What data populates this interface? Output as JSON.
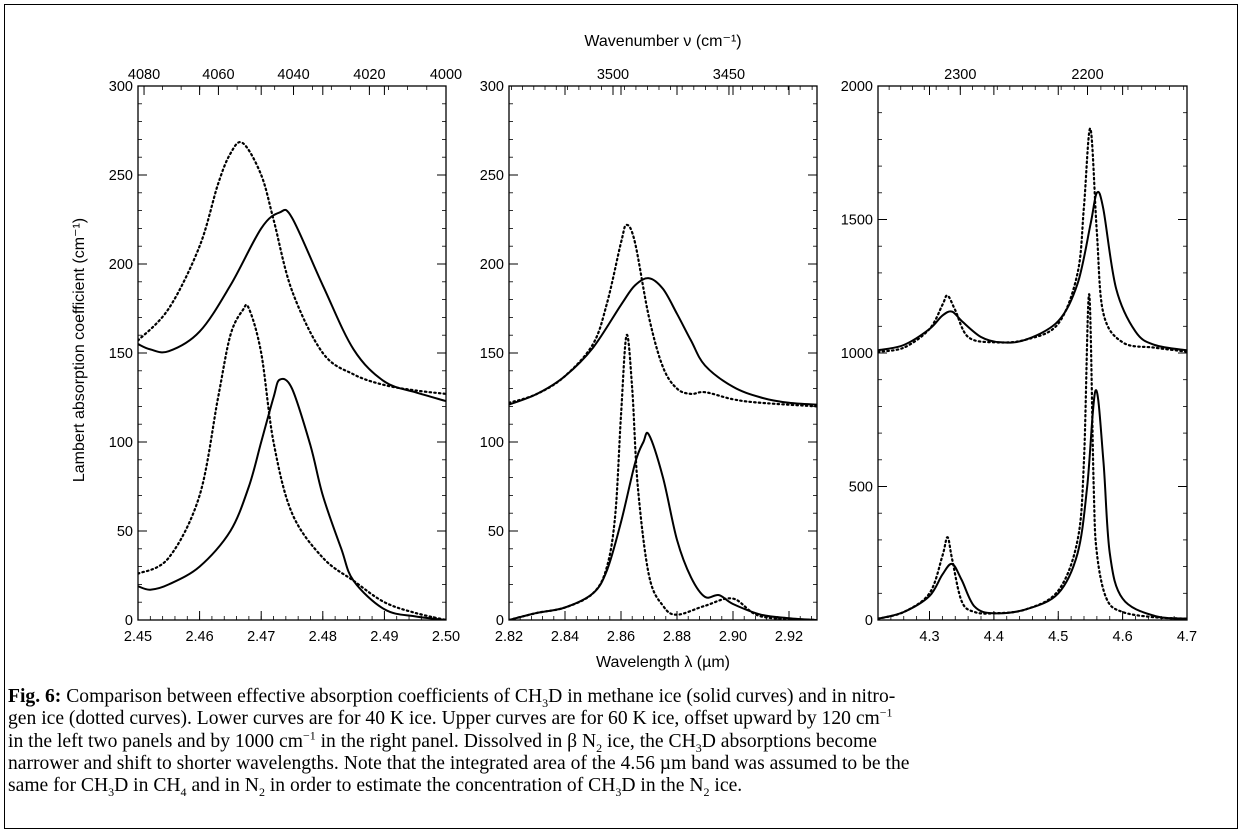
{
  "figure": {
    "top_axis_title": "Wavenumber ν (cm⁻¹)",
    "bottom_axis_title": "Wavelength λ (µm)",
    "left_axis_title": "Lambert absorption coefficient (cm⁻¹)"
  },
  "caption": {
    "label": "Fig. 6:",
    "lines": [
      " Comparison between effective absorption coefficients of CH<sub>3</sub>D in methane ice (solid curves) and in nitro-",
      "gen ice (dotted curves).  Lower curves are for 40 K ice.  Upper curves are for 60 K ice, offset upward by 120 cm<sup>−1</sup>",
      "in the left two panels and by 1000 cm<sup>−1</sup> in the right panel.  Dissolved in β N<sub>2</sub> ice, the CH<sub>3</sub>D absorptions become",
      "narrower and shift to shorter wavelengths.  Note that the integrated area of the 4.56 µm band was assumed to be the",
      "same for CH<sub>3</sub>D in CH<sub>4</sub> and in N<sub>2</sub> in order to estimate the concentration of CH<sub>3</sub>D in the N<sub>2</sub> ice."
    ]
  },
  "chart_data": [
    {
      "type": "line",
      "panel": "left",
      "xlabel": "Wavelength λ (µm)",
      "ylabel": "Lambert absorption coefficient (cm⁻¹)",
      "top_axis_label": "Wavenumber ν (cm⁻¹)",
      "xlim": [
        2.45,
        2.5
      ],
      "ylim": [
        0,
        300
      ],
      "x_ticks": [
        "2.45",
        "2.46",
        "2.47",
        "2.48",
        "2.49",
        "2.50"
      ],
      "y_ticks": [
        "0",
        "50",
        "100",
        "150",
        "200",
        "250",
        "300"
      ],
      "top_ticks": [
        "4080",
        "4060",
        "4040",
        "4020",
        "4000"
      ],
      "series": [
        {
          "style": "solid",
          "x": [
            2.45,
            2.452,
            2.455,
            2.46,
            2.465,
            2.47,
            2.473,
            2.475,
            2.48,
            2.485,
            2.49,
            2.495,
            2.5
          ],
          "y": [
            155,
            152,
            151,
            162,
            188,
            220,
            229,
            226,
            188,
            152,
            134,
            128,
            123
          ]
        },
        {
          "style": "dotted",
          "x": [
            2.45,
            2.455,
            2.46,
            2.463,
            2.465,
            2.467,
            2.47,
            2.472,
            2.475,
            2.48,
            2.485,
            2.49,
            2.495,
            2.5
          ],
          "y": [
            157,
            175,
            210,
            245,
            262,
            268,
            250,
            225,
            185,
            150,
            138,
            132,
            129,
            127
          ]
        },
        {
          "style": "solid",
          "x": [
            2.45,
            2.452,
            2.455,
            2.46,
            2.465,
            2.468,
            2.47,
            2.472,
            2.473,
            2.475,
            2.478,
            2.48,
            2.483,
            2.485,
            2.49,
            2.495,
            2.5
          ],
          "y": [
            19,
            17,
            20,
            30,
            50,
            75,
            100,
            125,
            135,
            130,
            98,
            70,
            40,
            22,
            6,
            2,
            0
          ]
        },
        {
          "style": "dotted",
          "x": [
            2.45,
            2.455,
            2.46,
            2.463,
            2.465,
            2.467,
            2.468,
            2.47,
            2.472,
            2.475,
            2.48,
            2.485,
            2.49,
            2.495,
            2.5
          ],
          "y": [
            26,
            35,
            70,
            125,
            160,
            174,
            175,
            150,
            100,
            60,
            35,
            22,
            10,
            4,
            0
          ]
        }
      ]
    },
    {
      "type": "line",
      "panel": "middle",
      "xlabel": "Wavelength λ (µm)",
      "top_axis_label": "Wavenumber ν (cm⁻¹)",
      "xlim": [
        2.82,
        2.93
      ],
      "ylim": [
        0,
        300
      ],
      "x_ticks": [
        "2.82",
        "2.84",
        "2.86",
        "2.88",
        "2.90",
        "2.92"
      ],
      "y_ticks": [
        "0",
        "50",
        "100",
        "150",
        "200",
        "250",
        "300"
      ],
      "top_ticks": [
        "3500",
        "3450"
      ],
      "series": [
        {
          "style": "solid",
          "x": [
            2.82,
            2.83,
            2.84,
            2.85,
            2.86,
            2.865,
            2.87,
            2.875,
            2.88,
            2.885,
            2.89,
            2.9,
            2.91,
            2.92,
            2.93
          ],
          "y": [
            121,
            127,
            137,
            153,
            177,
            188,
            192,
            186,
            172,
            157,
            143,
            131,
            125,
            122,
            121
          ]
        },
        {
          "style": "dotted",
          "x": [
            2.82,
            2.83,
            2.84,
            2.85,
            2.855,
            2.86,
            2.862,
            2.865,
            2.87,
            2.875,
            2.88,
            2.885,
            2.89,
            2.9,
            2.91,
            2.93
          ],
          "y": [
            122,
            127,
            137,
            155,
            178,
            212,
            222,
            212,
            170,
            142,
            130,
            127,
            128,
            124,
            122,
            120
          ]
        },
        {
          "style": "solid",
          "x": [
            2.82,
            2.83,
            2.84,
            2.85,
            2.855,
            2.86,
            2.865,
            2.868,
            2.87,
            2.875,
            2.88,
            2.885,
            2.89,
            2.895,
            2.9,
            2.91,
            2.92,
            2.93
          ],
          "y": [
            0,
            4,
            7,
            15,
            28,
            55,
            88,
            100,
            104,
            80,
            45,
            24,
            13,
            14,
            9,
            3,
            1,
            0
          ]
        },
        {
          "style": "dotted",
          "x": [
            2.82,
            2.83,
            2.84,
            2.85,
            2.855,
            2.858,
            2.86,
            2.862,
            2.864,
            2.866,
            2.87,
            2.875,
            2.88,
            2.89,
            2.9,
            2.91,
            2.93
          ],
          "y": [
            0,
            4,
            7,
            15,
            30,
            60,
            115,
            160,
            130,
            75,
            25,
            8,
            3,
            8,
            12,
            2,
            0
          ]
        }
      ]
    },
    {
      "type": "line",
      "panel": "right",
      "xlabel": "Wavelength λ (µm)",
      "top_axis_label": "Wavenumber ν (cm⁻¹)",
      "xlim": [
        4.22,
        4.7
      ],
      "ylim": [
        0,
        2000
      ],
      "x_ticks": [
        "4.3",
        "4.4",
        "4.5",
        "4.6",
        "4.7"
      ],
      "y_ticks": [
        "0",
        "500",
        "1000",
        "1500",
        "2000"
      ],
      "top_ticks": [
        "2300",
        "2200"
      ],
      "series": [
        {
          "style": "solid",
          "x": [
            4.22,
            4.26,
            4.3,
            4.32,
            4.335,
            4.35,
            4.38,
            4.41,
            4.45,
            4.5,
            4.53,
            4.55,
            4.56,
            4.57,
            4.59,
            4.62,
            4.65,
            4.7
          ],
          "y": [
            1010,
            1030,
            1090,
            1140,
            1155,
            1120,
            1060,
            1040,
            1050,
            1120,
            1260,
            1480,
            1600,
            1540,
            1240,
            1080,
            1030,
            1010
          ]
        },
        {
          "style": "dotted",
          "x": [
            4.22,
            4.26,
            4.3,
            4.32,
            4.328,
            4.34,
            4.36,
            4.4,
            4.45,
            4.5,
            4.53,
            4.54,
            4.55,
            4.56,
            4.57,
            4.6,
            4.65,
            4.7
          ],
          "y": [
            1005,
            1020,
            1090,
            1180,
            1215,
            1160,
            1060,
            1040,
            1050,
            1110,
            1300,
            1550,
            1840,
            1450,
            1150,
            1040,
            1020,
            1005
          ]
        },
        {
          "style": "solid",
          "x": [
            4.22,
            4.26,
            4.3,
            4.32,
            4.335,
            4.35,
            4.37,
            4.4,
            4.45,
            4.5,
            4.53,
            4.545,
            4.558,
            4.57,
            4.58,
            4.6,
            4.65,
            4.7
          ],
          "y": [
            5,
            30,
            90,
            170,
            210,
            150,
            50,
            25,
            40,
            100,
            250,
            500,
            860,
            600,
            250,
            80,
            15,
            5
          ]
        },
        {
          "style": "dotted",
          "x": [
            4.22,
            4.26,
            4.3,
            4.32,
            4.328,
            4.335,
            4.35,
            4.37,
            4.4,
            4.45,
            4.5,
            4.53,
            4.54,
            4.548,
            4.555,
            4.56,
            4.575,
            4.6,
            4.65,
            4.7
          ],
          "y": [
            5,
            30,
            100,
            240,
            310,
            230,
            70,
            30,
            25,
            40,
            110,
            300,
            600,
            1220,
            500,
            250,
            80,
            30,
            10,
            5
          ]
        }
      ]
    }
  ]
}
